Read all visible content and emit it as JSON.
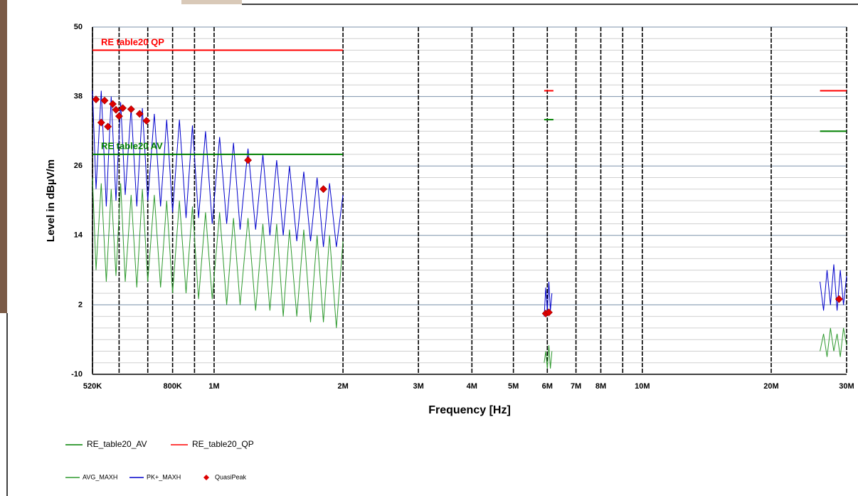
{
  "chart_data": {
    "type": "line",
    "xlabel": "Frequency [Hz]",
    "ylabel": "Level in dBµV/m",
    "xscale": "log",
    "xlim": [
      520000,
      30000000
    ],
    "ylim": [
      -10,
      50
    ],
    "xticks": [
      {
        "value": 520000,
        "label": "520K"
      },
      {
        "value": 800000,
        "label": "800K"
      },
      {
        "value": 1000000,
        "label": "1M"
      },
      {
        "value": 2000000,
        "label": "2M"
      },
      {
        "value": 3000000,
        "label": "3M"
      },
      {
        "value": 4000000,
        "label": "4M"
      },
      {
        "value": 5000000,
        "label": "5M"
      },
      {
        "value": 6000000,
        "label": "6M"
      },
      {
        "value": 7000000,
        "label": "7M"
      },
      {
        "value": 8000000,
        "label": "8M"
      },
      {
        "value": 10000000,
        "label": "10M"
      },
      {
        "value": 20000000,
        "label": "20M"
      },
      {
        "value": 30000000,
        "label": "30M"
      }
    ],
    "minor_xticks": [
      600000,
      700000,
      900000,
      9000000
    ],
    "yticks": [
      50,
      38,
      26,
      14,
      2,
      -10
    ],
    "minor_yticks": [
      -8,
      -6,
      -4,
      -2,
      0,
      4,
      6,
      8,
      10,
      12,
      16,
      18,
      20,
      22,
      24,
      28,
      30,
      32,
      34,
      36,
      40,
      42,
      44,
      46,
      48
    ],
    "grid": true,
    "annotations": [
      {
        "text": "RE table20 QP",
        "color": "#ff0000"
      },
      {
        "text": "RE table20 AV",
        "color": "#008000"
      }
    ],
    "series": [
      {
        "name": "RE_table20_AV",
        "color": "#008000",
        "style": "line",
        "x": [
          520000,
          2000000,
          3000000,
          5900000,
          6200000,
          10000000,
          26000000,
          30000000
        ],
        "values": [
          28,
          28,
          null,
          34,
          34,
          null,
          32,
          32
        ]
      },
      {
        "name": "RE_table20_QP",
        "color": "#ff0000",
        "style": "line",
        "x": [
          520000,
          2000000,
          3000000,
          5900000,
          6200000,
          10000000,
          26000000,
          30000000
        ],
        "values": [
          46,
          46,
          null,
          39,
          39,
          null,
          39,
          39
        ]
      },
      {
        "name": "AVG_MAXH",
        "color": "#2e9a2e",
        "style": "line",
        "x": [
          520000,
          530000,
          545000,
          560000,
          575000,
          590000,
          605000,
          620000,
          640000,
          660000,
          680000,
          700000,
          725000,
          750000,
          775000,
          800000,
          830000,
          860000,
          890000,
          920000,
          955000,
          990000,
          1030000,
          1070000,
          1110000,
          1150000,
          1200000,
          1250000,
          1300000,
          1350000,
          1400000,
          1450000,
          1500000,
          1560000,
          1620000,
          1680000,
          1740000,
          1800000,
          1860000,
          1930000,
          2000000,
          3000000,
          5900000,
          5950000,
          6000000,
          6050000,
          6100000,
          6150000,
          10000000,
          26000000,
          26500000,
          27000000,
          27500000,
          28000000,
          28500000,
          29000000,
          29500000,
          30000000
        ],
        "values": [
          24,
          8,
          23,
          6,
          22,
          7,
          23,
          6,
          21,
          5,
          22,
          6,
          21,
          5,
          20,
          4,
          20,
          4,
          19,
          3,
          18,
          3,
          18,
          2,
          17,
          2,
          17,
          1,
          16,
          1,
          16,
          0,
          15,
          0,
          15,
          -1,
          14,
          -1,
          14,
          -2,
          13,
          null,
          -8,
          -6,
          -9,
          -5,
          -9,
          -6,
          null,
          -6,
          -3,
          -7,
          -2,
          -6,
          -3,
          -7,
          -2,
          -5
        ]
      },
      {
        "name": "PK+_MAXH",
        "color": "#0000cc",
        "style": "line",
        "x": [
          520000,
          530000,
          545000,
          560000,
          575000,
          590000,
          605000,
          620000,
          640000,
          660000,
          680000,
          700000,
          725000,
          750000,
          775000,
          800000,
          830000,
          860000,
          890000,
          920000,
          955000,
          990000,
          1030000,
          1070000,
          1110000,
          1150000,
          1200000,
          1250000,
          1300000,
          1350000,
          1400000,
          1450000,
          1500000,
          1560000,
          1620000,
          1680000,
          1740000,
          1800000,
          1860000,
          1930000,
          2000000,
          3000000,
          5900000,
          5950000,
          6000000,
          6050000,
          6100000,
          6150000,
          10000000,
          26000000,
          26500000,
          27000000,
          27500000,
          28000000,
          28500000,
          29000000,
          29500000,
          30000000
        ],
        "values": [
          39,
          22,
          39,
          19,
          38,
          20,
          37,
          21,
          36,
          19,
          36,
          20,
          35,
          19,
          34,
          18,
          34,
          17,
          33,
          17,
          32,
          16,
          31,
          16,
          30,
          15,
          29,
          15,
          28,
          14,
          27,
          14,
          26,
          13,
          25,
          13,
          24,
          12,
          23,
          12,
          21,
          null,
          0,
          5,
          1,
          6,
          1,
          4,
          null,
          6,
          1,
          8,
          2,
          9,
          1,
          8,
          2,
          7
        ]
      },
      {
        "name": "QuasiPeak",
        "color": "#dd0000",
        "style": "marker",
        "x": [
          530000,
          545000,
          555000,
          565000,
          580000,
          590000,
          600000,
          612000,
          640000,
          670000,
          695000,
          1200000,
          1800000,
          5950000,
          6050000,
          28800000
        ],
        "values": [
          37.5,
          33.5,
          37.3,
          32.8,
          36.7,
          35.7,
          34.6,
          36,
          35.8,
          35,
          33.8,
          27,
          22,
          0.5,
          0.7,
          3
        ]
      }
    ]
  }
}
